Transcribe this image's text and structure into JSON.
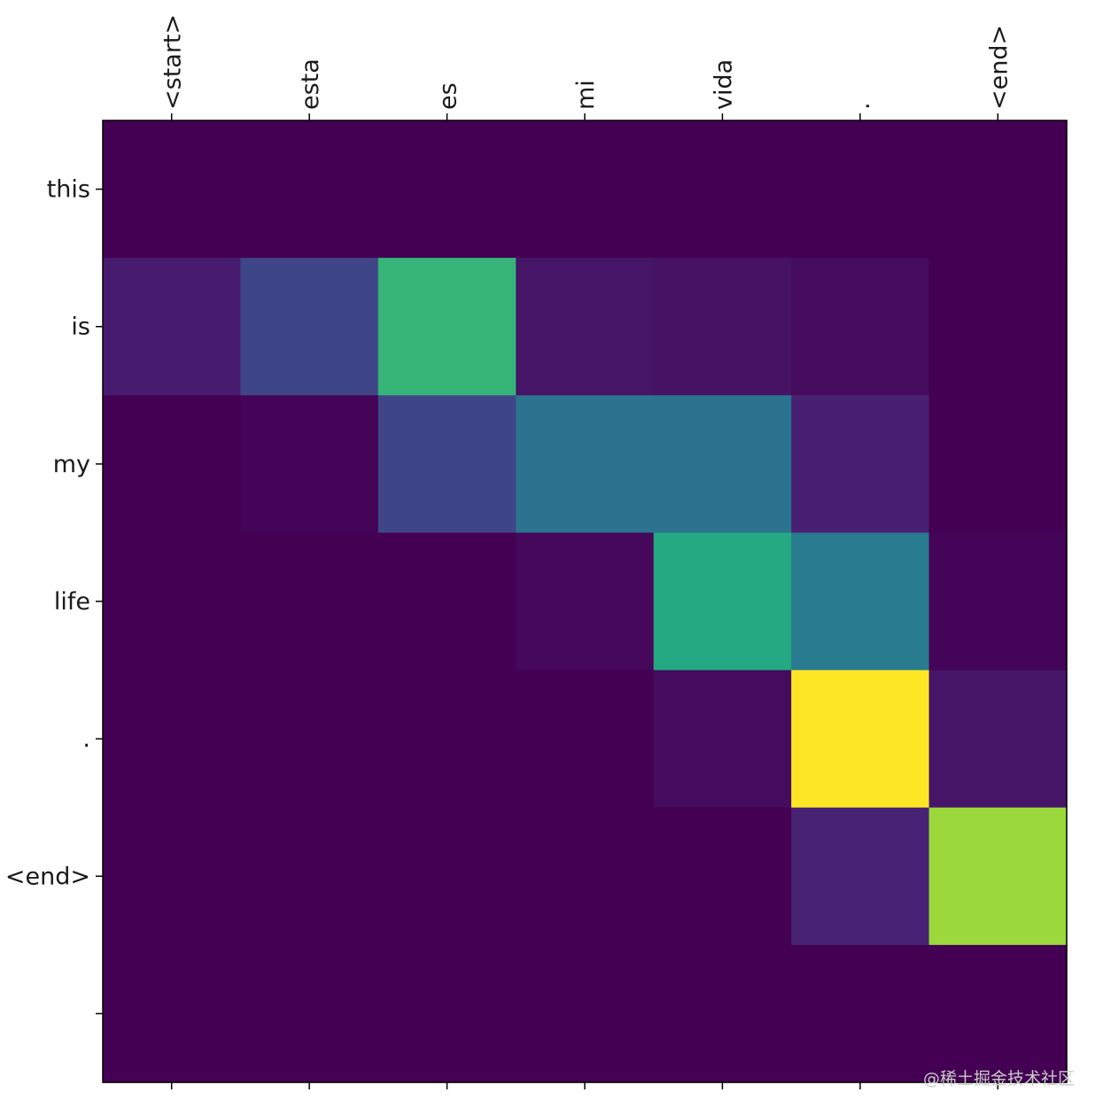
{
  "chart_data": {
    "type": "heatmap",
    "colormap": "viridis",
    "x_tick_labels": [
      "<start>",
      "esta",
      "es",
      "mi",
      "vida",
      ".",
      "<end>"
    ],
    "y_tick_labels": [
      "this",
      "is",
      "my",
      "life",
      ".",
      "<end>",
      ""
    ],
    "vmin": 0,
    "vmax": 1,
    "values": [
      [
        0.0,
        0.0,
        0.0,
        0.0,
        0.0,
        0.0,
        0.0
      ],
      [
        0.08,
        0.21,
        0.66,
        0.06,
        0.05,
        0.03,
        0.0
      ],
      [
        0.0,
        0.01,
        0.21,
        0.38,
        0.38,
        0.09,
        0.0
      ],
      [
        0.0,
        0.0,
        0.0,
        0.02,
        0.61,
        0.41,
        0.01
      ],
      [
        0.0,
        0.0,
        0.0,
        0.0,
        0.03,
        1.0,
        0.06
      ],
      [
        0.0,
        0.0,
        0.0,
        0.0,
        0.0,
        0.1,
        0.85
      ],
      [
        0.0,
        0.0,
        0.0,
        0.0,
        0.0,
        0.0,
        0.0
      ]
    ]
  },
  "watermark": "@稀土掘金技术社区"
}
